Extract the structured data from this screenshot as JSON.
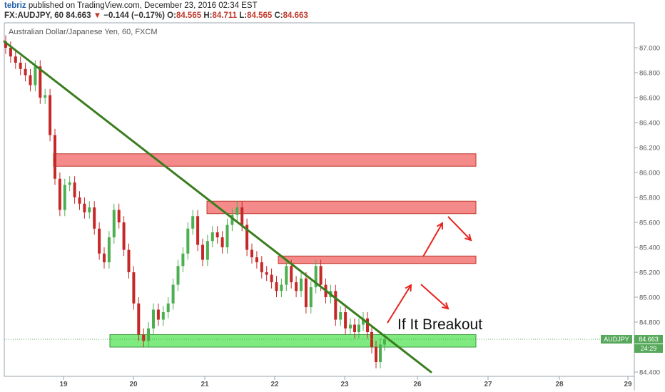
{
  "header": {
    "user": "tebriz",
    "published_text": "published on TradingView.com, December 23, 2016 02:34 EST",
    "symbol_interval": "FX:AUDJPY, 60",
    "last_price": "84.663",
    "change_arrow": "▼",
    "change": "−0.144 (−0.17%)",
    "o_label": "O:",
    "o_value": "84.565",
    "h_label": "H:",
    "h_value": "84.711",
    "l_label": "L:",
    "l_value": "84.565",
    "c_label": "C:",
    "c_value": "84.663"
  },
  "colors": {
    "up_candle": "#4caf50",
    "down_candle": "#c62828",
    "trendline": "#3a7d1e",
    "resistance_fill": "#f48a8a",
    "resistance_stroke": "#c0392b",
    "support_fill": "#7fea7f",
    "support_stroke": "#3c9a3c",
    "arrow": "#e8231d",
    "price_label_bg": "#56a85a"
  },
  "chart_data": {
    "type": "candlestick",
    "title": "Australian Dollar/Japanese Yen, 60, FXCM",
    "ylim": [
      84.35,
      87.15
    ],
    "y_ticks": [
      "84.400",
      "84.600",
      "84.800",
      "85.000",
      "85.200",
      "85.400",
      "85.600",
      "85.800",
      "86.000",
      "86.200",
      "86.400",
      "86.600",
      "86.800",
      "87.000"
    ],
    "x_ticks": [
      "19",
      "20",
      "21",
      "22",
      "23",
      "26",
      "27",
      "28",
      "29"
    ],
    "grid": false,
    "series": [
      {
        "close": [
          87.0,
          86.93,
          86.88,
          86.83,
          86.78,
          86.7,
          86.85,
          86.6,
          86.62,
          86.3,
          85.95,
          85.7,
          85.9,
          85.92,
          85.8,
          85.75,
          85.68,
          85.72,
          85.55,
          85.35,
          85.28,
          85.48,
          85.7,
          85.6,
          85.38,
          85.2,
          84.95,
          84.7,
          84.65,
          84.75,
          84.9,
          84.82,
          84.88,
          84.95,
          85.1,
          85.25,
          85.35,
          85.55,
          85.65,
          85.42,
          85.3,
          85.45,
          85.52,
          85.48,
          85.4,
          85.58,
          85.66,
          85.72,
          85.58,
          85.38,
          85.32,
          85.28,
          85.2,
          85.18,
          85.12,
          85.05,
          85.1,
          85.25,
          85.12,
          85.05,
          85.15,
          84.92,
          85.08,
          85.25,
          85.1,
          85.0,
          85.05,
          84.82,
          84.88,
          84.75,
          84.78,
          84.72,
          84.78,
          84.83,
          84.72,
          84.6,
          84.48,
          84.62,
          84.66
        ]
      }
    ],
    "annotations": {
      "breakout_text": "If It Breakout",
      "resistance_zones": [
        [
          86.05,
          86.15
        ],
        [
          85.67,
          85.77
        ],
        [
          85.27,
          85.33
        ]
      ],
      "support_zone": [
        84.6,
        84.7
      ],
      "trendline": [
        [
          "18.4",
          87.05
        ],
        [
          "26.2",
          84.4
        ]
      ]
    },
    "price_label": {
      "symbol": "AUDJPY",
      "value": "84.663",
      "countdown": "24:29"
    }
  }
}
